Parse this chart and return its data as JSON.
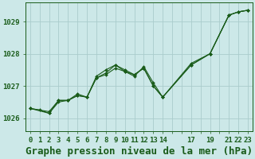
{
  "background_color": "#cce8e8",
  "grid_color": "#aacccc",
  "line_color": "#1a5c1a",
  "marker_color": "#1a5c1a",
  "title": "Graphe pression niveau de la mer (hPa)",
  "xlim": [
    -0.5,
    23.5
  ],
  "ylim": [
    1025.6,
    1029.6
  ],
  "yticks": [
    1026,
    1027,
    1028,
    1029
  ],
  "xtick_positions": [
    0,
    1,
    2,
    3,
    4,
    5,
    6,
    7,
    8,
    9,
    10,
    11,
    12,
    13,
    14,
    15,
    16,
    17,
    18,
    19,
    20,
    21,
    22,
    23
  ],
  "xtick_labels": [
    "0",
    "1",
    "2",
    "3",
    "4",
    "5",
    "6",
    "7",
    "8",
    "9",
    "10",
    "11",
    "12",
    "13",
    "14",
    "",
    "",
    "17",
    "",
    "19",
    "",
    "21",
    "22",
    "23"
  ],
  "series": [
    {
      "x": [
        0,
        1,
        2,
        3,
        4,
        5,
        6,
        7,
        8,
        9,
        10,
        11,
        12,
        13,
        14,
        17,
        19,
        21,
        22,
        23
      ],
      "y": [
        1026.3,
        1026.25,
        1026.15,
        1026.5,
        1026.55,
        1026.7,
        1026.65,
        1027.25,
        1027.35,
        1027.55,
        1027.45,
        1027.35,
        1027.55,
        1027.0,
        1026.65,
        1027.65,
        1028.0,
        1029.2,
        1029.3,
        1029.35
      ]
    },
    {
      "x": [
        0,
        2,
        3,
        4,
        5,
        6,
        7,
        8,
        9,
        10,
        11,
        12,
        13,
        14,
        17,
        19,
        21,
        22,
        23
      ],
      "y": [
        1026.3,
        1026.15,
        1026.55,
        1026.55,
        1026.7,
        1026.65,
        1027.25,
        1027.4,
        1027.65,
        1027.5,
        1027.35,
        1027.55,
        1027.0,
        1026.65,
        1027.65,
        1028.0,
        1029.2,
        1029.3,
        1029.35
      ]
    },
    {
      "x": [
        0,
        2,
        3,
        4,
        5,
        6,
        7,
        8,
        9,
        10,
        11,
        12,
        13,
        14,
        17,
        19,
        21,
        22,
        23
      ],
      "y": [
        1026.3,
        1026.2,
        1026.55,
        1026.55,
        1026.75,
        1026.65,
        1027.3,
        1027.5,
        1027.65,
        1027.45,
        1027.3,
        1027.6,
        1027.1,
        1026.65,
        1027.7,
        1028.0,
        1029.2,
        1029.3,
        1029.35
      ]
    }
  ],
  "title_fontsize": 9,
  "tick_fontsize": 6.5
}
